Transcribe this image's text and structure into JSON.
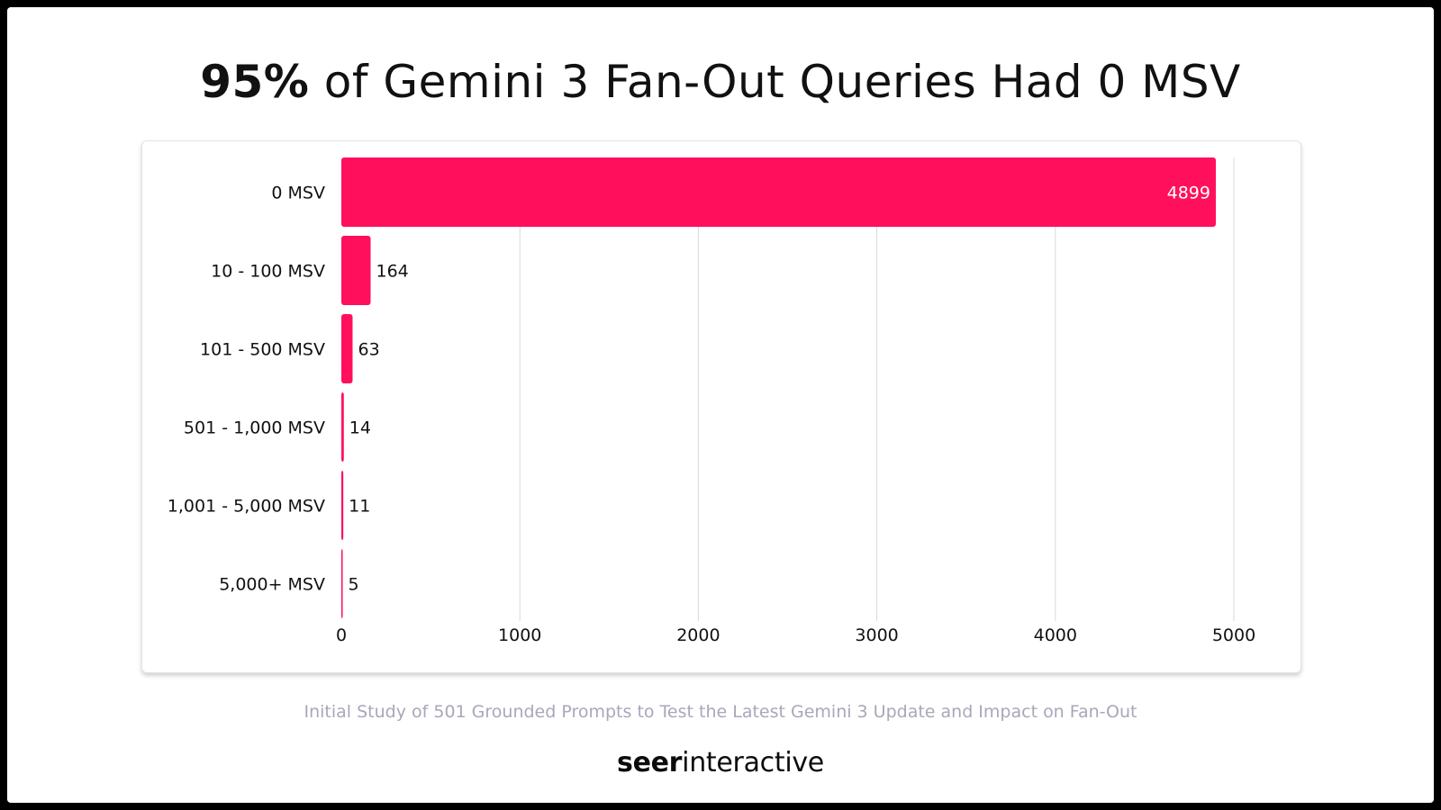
{
  "title": {
    "highlight": "95%",
    "rest": " of Gemini 3 Fan-Out Queries Had 0 MSV"
  },
  "caption": "Initial Study of 501 Grounded Prompts to Test the Latest Gemini 3 Update and Impact on Fan-Out",
  "brand": {
    "part1": "seer",
    "part2": "interactive"
  },
  "colors": {
    "bar": "#ff0f5c",
    "grid": "#d9d9d9",
    "text": "#111111",
    "caption": "#a9a7b9"
  },
  "chart_data": {
    "type": "bar",
    "orientation": "horizontal",
    "categories": [
      "0 MSV",
      "10 - 100 MSV",
      "101 - 500 MSV",
      "501 - 1,000 MSV",
      "1,001 - 5,000 MSV",
      "5,000+ MSV"
    ],
    "values": [
      4899,
      164,
      63,
      14,
      11,
      5
    ],
    "xlim": [
      0,
      5000
    ],
    "xticks": [
      0,
      1000,
      2000,
      3000,
      4000,
      5000
    ],
    "grid": true,
    "title": "95% of Gemini 3 Fan-Out Queries Had 0 MSV",
    "xlabel": "",
    "ylabel": ""
  }
}
